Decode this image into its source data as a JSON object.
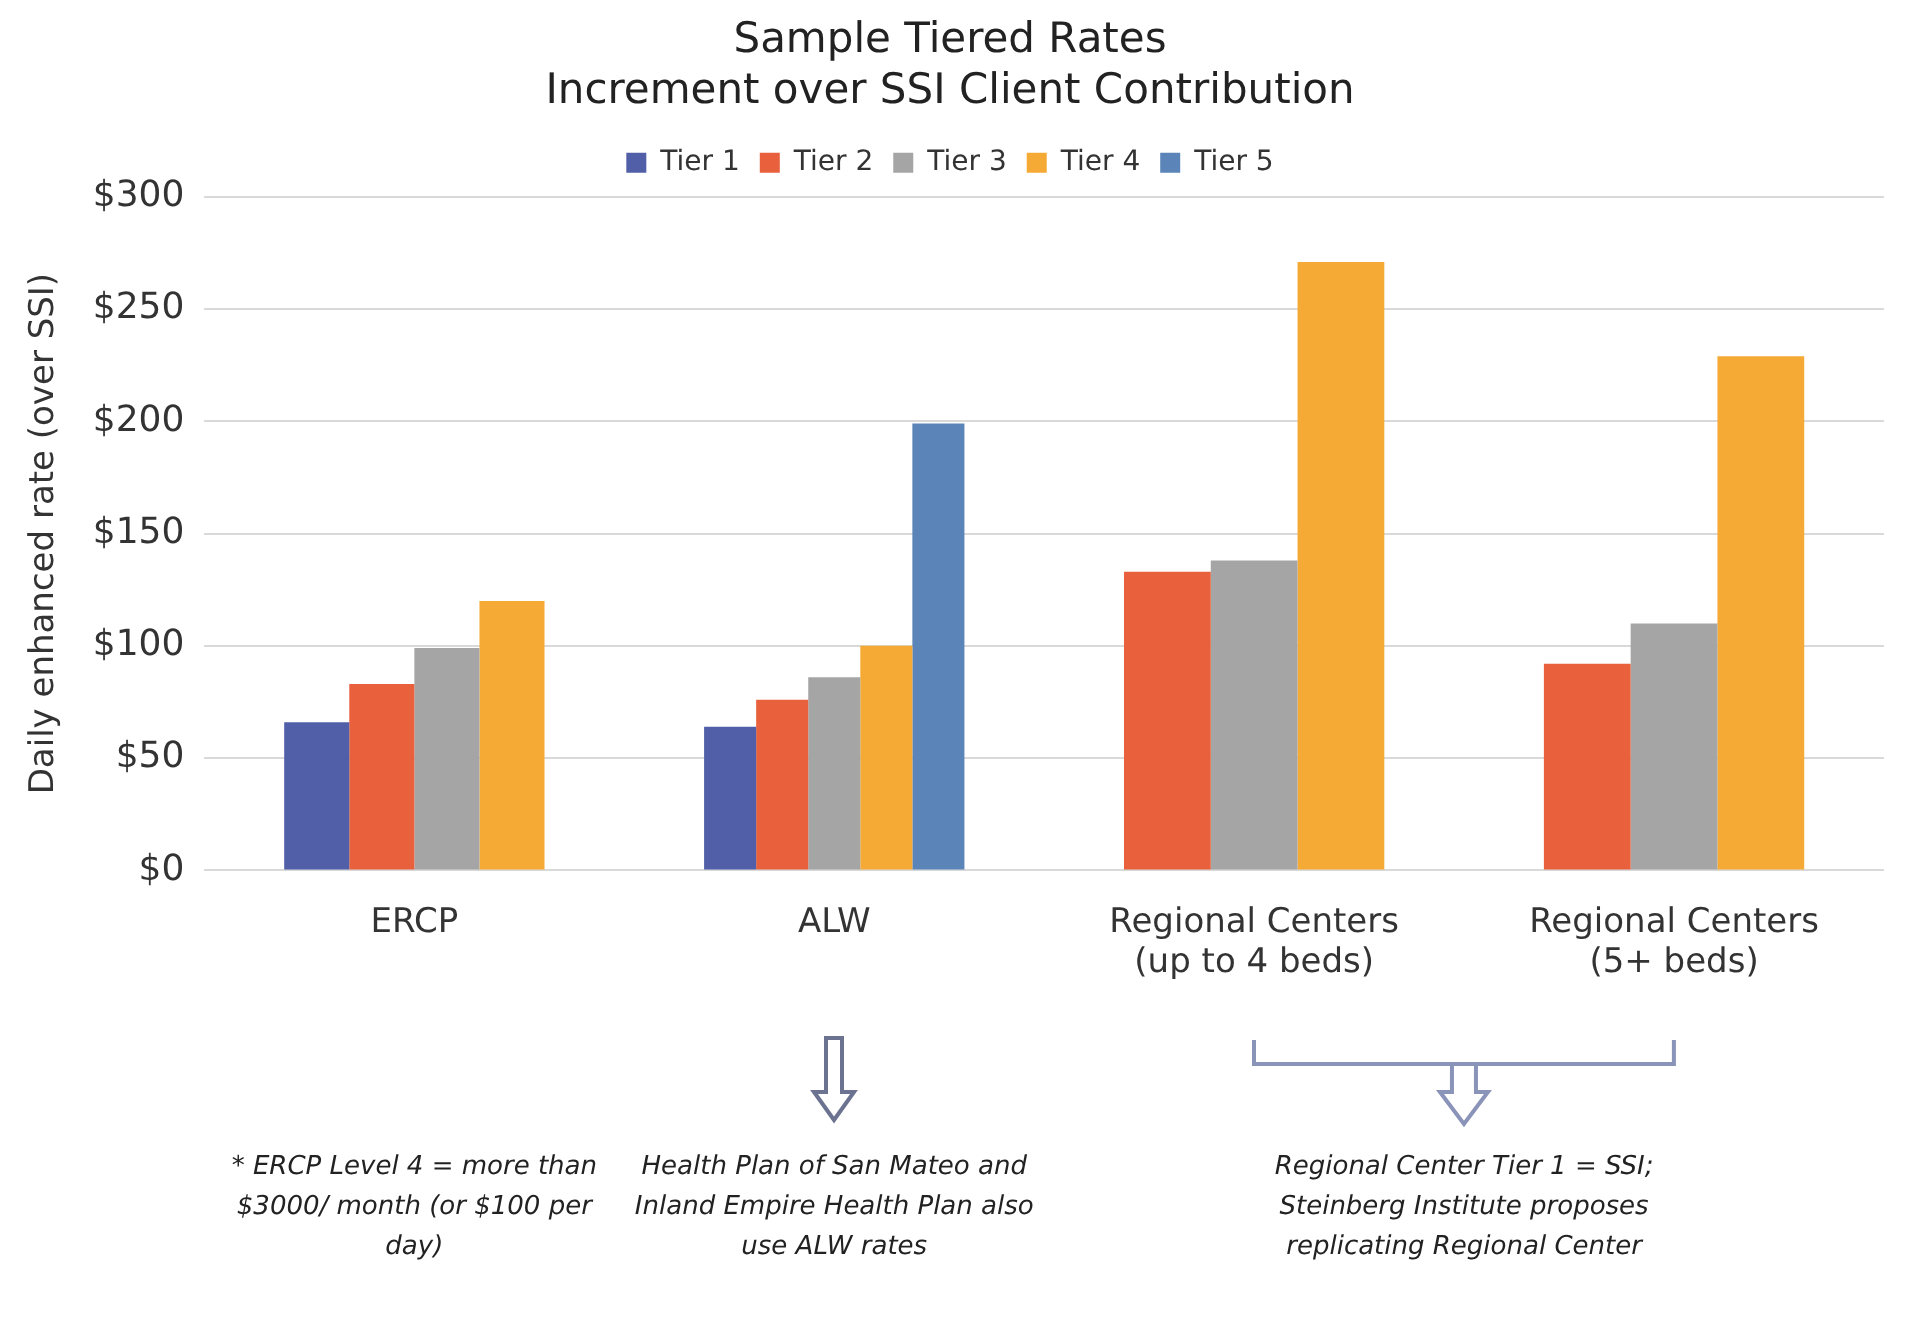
{
  "chart_data": {
    "type": "bar",
    "title": "Sample Tiered Rates",
    "subtitle": "Increment over SSI Client Contribution",
    "ylabel": "Daily enhanced rate (over SSI)",
    "categories": [
      "ERCP",
      "ALW",
      "Regional Centers\n(up to 4 beds)",
      "Regional Centers\n(5+ beds)"
    ],
    "series": [
      {
        "name": "Tier 1",
        "color": "#515fa8",
        "values": [
          66,
          64,
          null,
          null
        ]
      },
      {
        "name": "Tier 2",
        "color": "#e8603c",
        "values": [
          83,
          76,
          133,
          92
        ]
      },
      {
        "name": "Tier 3",
        "color": "#a5a5a5",
        "values": [
          99,
          86,
          138,
          110
        ]
      },
      {
        "name": "Tier 4",
        "color": "#f5aa35",
        "values": [
          120,
          100,
          271,
          229
        ]
      },
      {
        "name": "Tier 5",
        "color": "#5b84b8",
        "values": [
          null,
          199,
          null,
          null
        ]
      }
    ],
    "ylim": [
      0,
      300
    ],
    "yticks": [
      {
        "value": 0,
        "label": "$0"
      },
      {
        "value": 50,
        "label": "$50"
      },
      {
        "value": 100,
        "label": "$100"
      },
      {
        "value": 150,
        "label": "$150"
      },
      {
        "value": 200,
        "label": "$200"
      },
      {
        "value": 250,
        "label": "$250"
      },
      {
        "value": 300,
        "label": "$300"
      }
    ],
    "grid": "y",
    "legend": "top",
    "annotations": [
      "* ERCP Level 4 = more than $3000/ month (or $100 per day)",
      "Health Plan of San Mateo and Inland Empire Health Plan also use ALW rates",
      "Regional Center Tier 1 = SSI; Steinberg Institute proposes replicating Regional Center"
    ]
  }
}
